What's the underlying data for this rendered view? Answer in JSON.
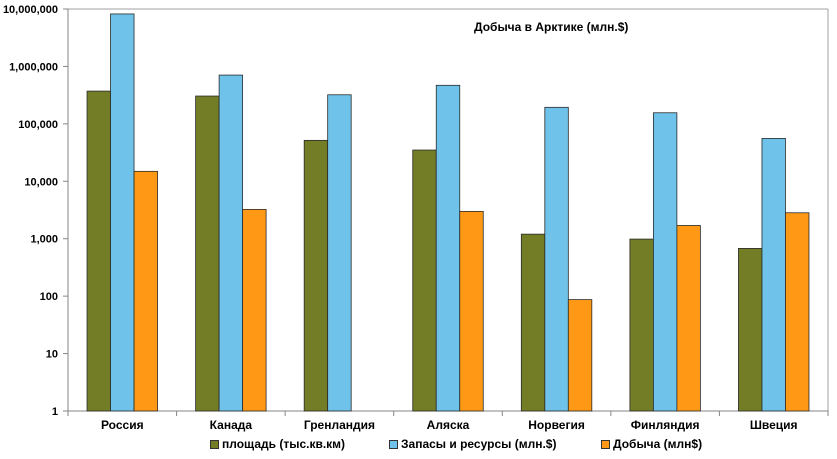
{
  "chart_data": {
    "type": "bar",
    "title": "Добыча в Арктике (млн.$)",
    "xlabel": "",
    "ylabel": "",
    "yscale": "log",
    "ylim": [
      1,
      10000000
    ],
    "yticks": [
      1,
      10,
      100,
      1000,
      10000,
      100000,
      1000000,
      10000000
    ],
    "ytick_labels": [
      "1",
      "10",
      "100",
      "1,000",
      "10,000",
      "100,000",
      "1,000,000",
      "10,000,000"
    ],
    "grid": false,
    "legend_position": "bottom",
    "categories": [
      "Россия",
      "Канада",
      "Гренландия",
      "Аляска",
      "Норвегия",
      "Финляндия",
      "Швеция"
    ],
    "series": [
      {
        "name": "площадь (тыс.кв.км)",
        "color": "#737D26",
        "values": [
          372000,
          305000,
          51600,
          35000,
          1200,
          985,
          678
        ]
      },
      {
        "name": "Запасы и ресурсы (млн.$)",
        "color": "#6FC3EA",
        "values": [
          8200000,
          707000,
          321000,
          469000,
          194000,
          156000,
          55800
        ]
      },
      {
        "name": "Добыча (млн$)",
        "color": "#FF9915",
        "values": [
          14900,
          3240,
          null,
          2990,
          87,
          1700,
          2830
        ]
      }
    ]
  }
}
